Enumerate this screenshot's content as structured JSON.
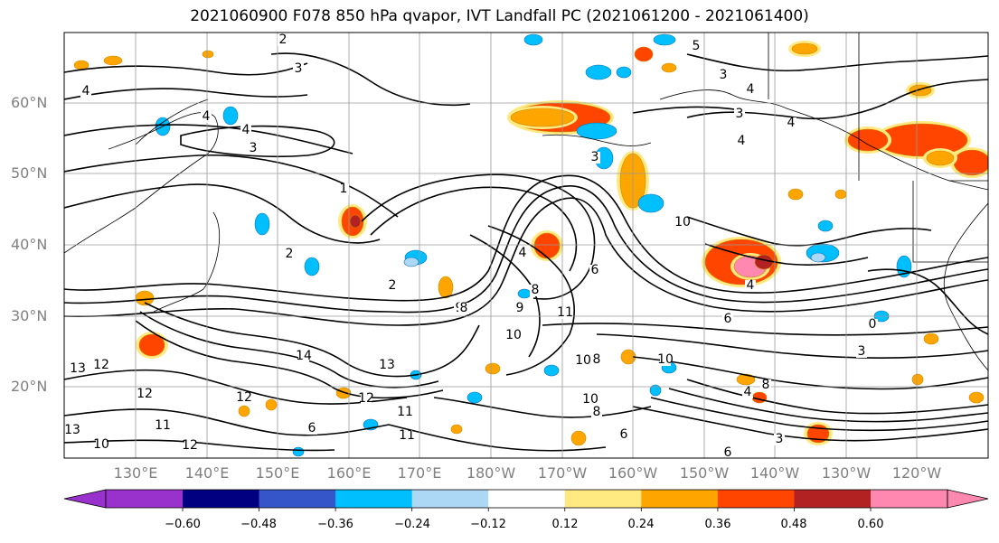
{
  "title": "2021060900 F078 850 hPa qvapor, IVT Landfall PC (2021061200 - 2021061400)",
  "latitude_labels": [
    "60°N",
    "50°N",
    "40°N",
    "30°N",
    "20°N"
  ],
  "longitude_labels": [
    "130°E",
    "140°E",
    "150°E",
    "160°E",
    "170°E",
    "180°W",
    "170°W",
    "160°W",
    "150°W",
    "140°W",
    "130°W",
    "120°W"
  ],
  "colorbar": {
    "tick_labels": [
      "−0.60",
      "−0.48",
      "−0.36",
      "−0.24",
      "−0.12",
      "0.12",
      "0.24",
      "0.36",
      "0.48",
      "0.60"
    ],
    "colors": [
      "#9932cc",
      "#000080",
      "#3556c8",
      "#00bfff",
      "#add8f5",
      "#ffffff",
      "#ffe980",
      "#ffa500",
      "#ff4500",
      "#b22222",
      "#ff88b0"
    ]
  },
  "contour_labels": [
    "2",
    "3",
    "4",
    "4",
    "3",
    "4",
    "5",
    "3",
    "4",
    "4",
    "3",
    "4",
    "1",
    "3",
    "2",
    "2",
    "4",
    "6",
    "8",
    "9",
    "10",
    "4",
    "6",
    "8",
    "9",
    "10",
    "11",
    "12",
    "13",
    "14",
    "13",
    "12",
    "6",
    "11",
    "12",
    "12",
    "11",
    "10",
    "13",
    "12",
    "11",
    "10",
    "8",
    "6",
    "10",
    "10",
    "8",
    "6",
    "3",
    "0",
    "3",
    "4",
    "8"
  ],
  "contour_color": "#000000"
}
